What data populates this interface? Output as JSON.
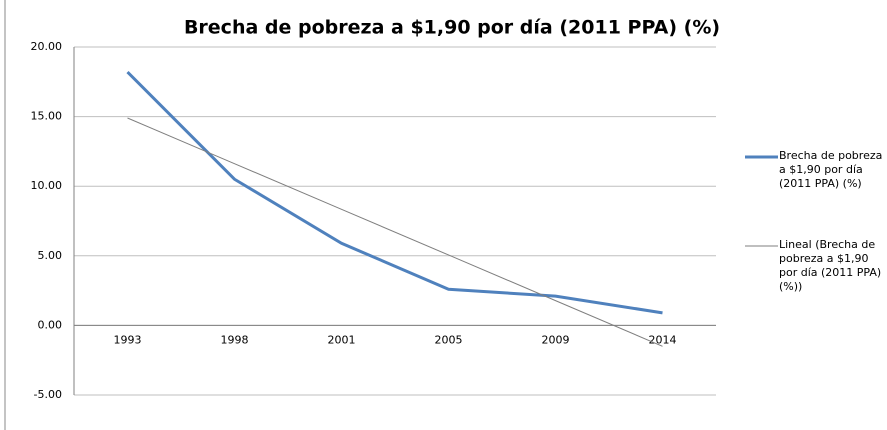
{
  "chart_data": {
    "type": "line",
    "title": "Brecha de pobreza a $1,90 por día (2011 PPA) (%)",
    "categories": [
      "1993",
      "1998",
      "2001",
      "2005",
      "2009",
      "2014"
    ],
    "series": [
      {
        "name": "Brecha de pobreza a $1,90 por día (2011 PPA) (%)",
        "color": "#4f81bd",
        "values": [
          18.2,
          10.5,
          5.9,
          2.6,
          2.1,
          0.9
        ]
      },
      {
        "name": "Lineal (Brecha de pobreza a $1,90 por día (2011 PPA) (%))",
        "color": "#7f7f7f",
        "values": [
          14.9,
          11.62,
          8.34,
          5.06,
          1.78,
          -1.5
        ]
      }
    ],
    "ylim": [
      -5,
      20
    ],
    "yticks": [
      {
        "value": -5,
        "label": "-5.00"
      },
      {
        "value": 0,
        "label": "0.00"
      },
      {
        "value": 5,
        "label": "5.00"
      },
      {
        "value": 10,
        "label": "10.00"
      },
      {
        "value": 15,
        "label": "15.00"
      },
      {
        "value": 20,
        "label": "20.00"
      }
    ],
    "grid": true
  }
}
